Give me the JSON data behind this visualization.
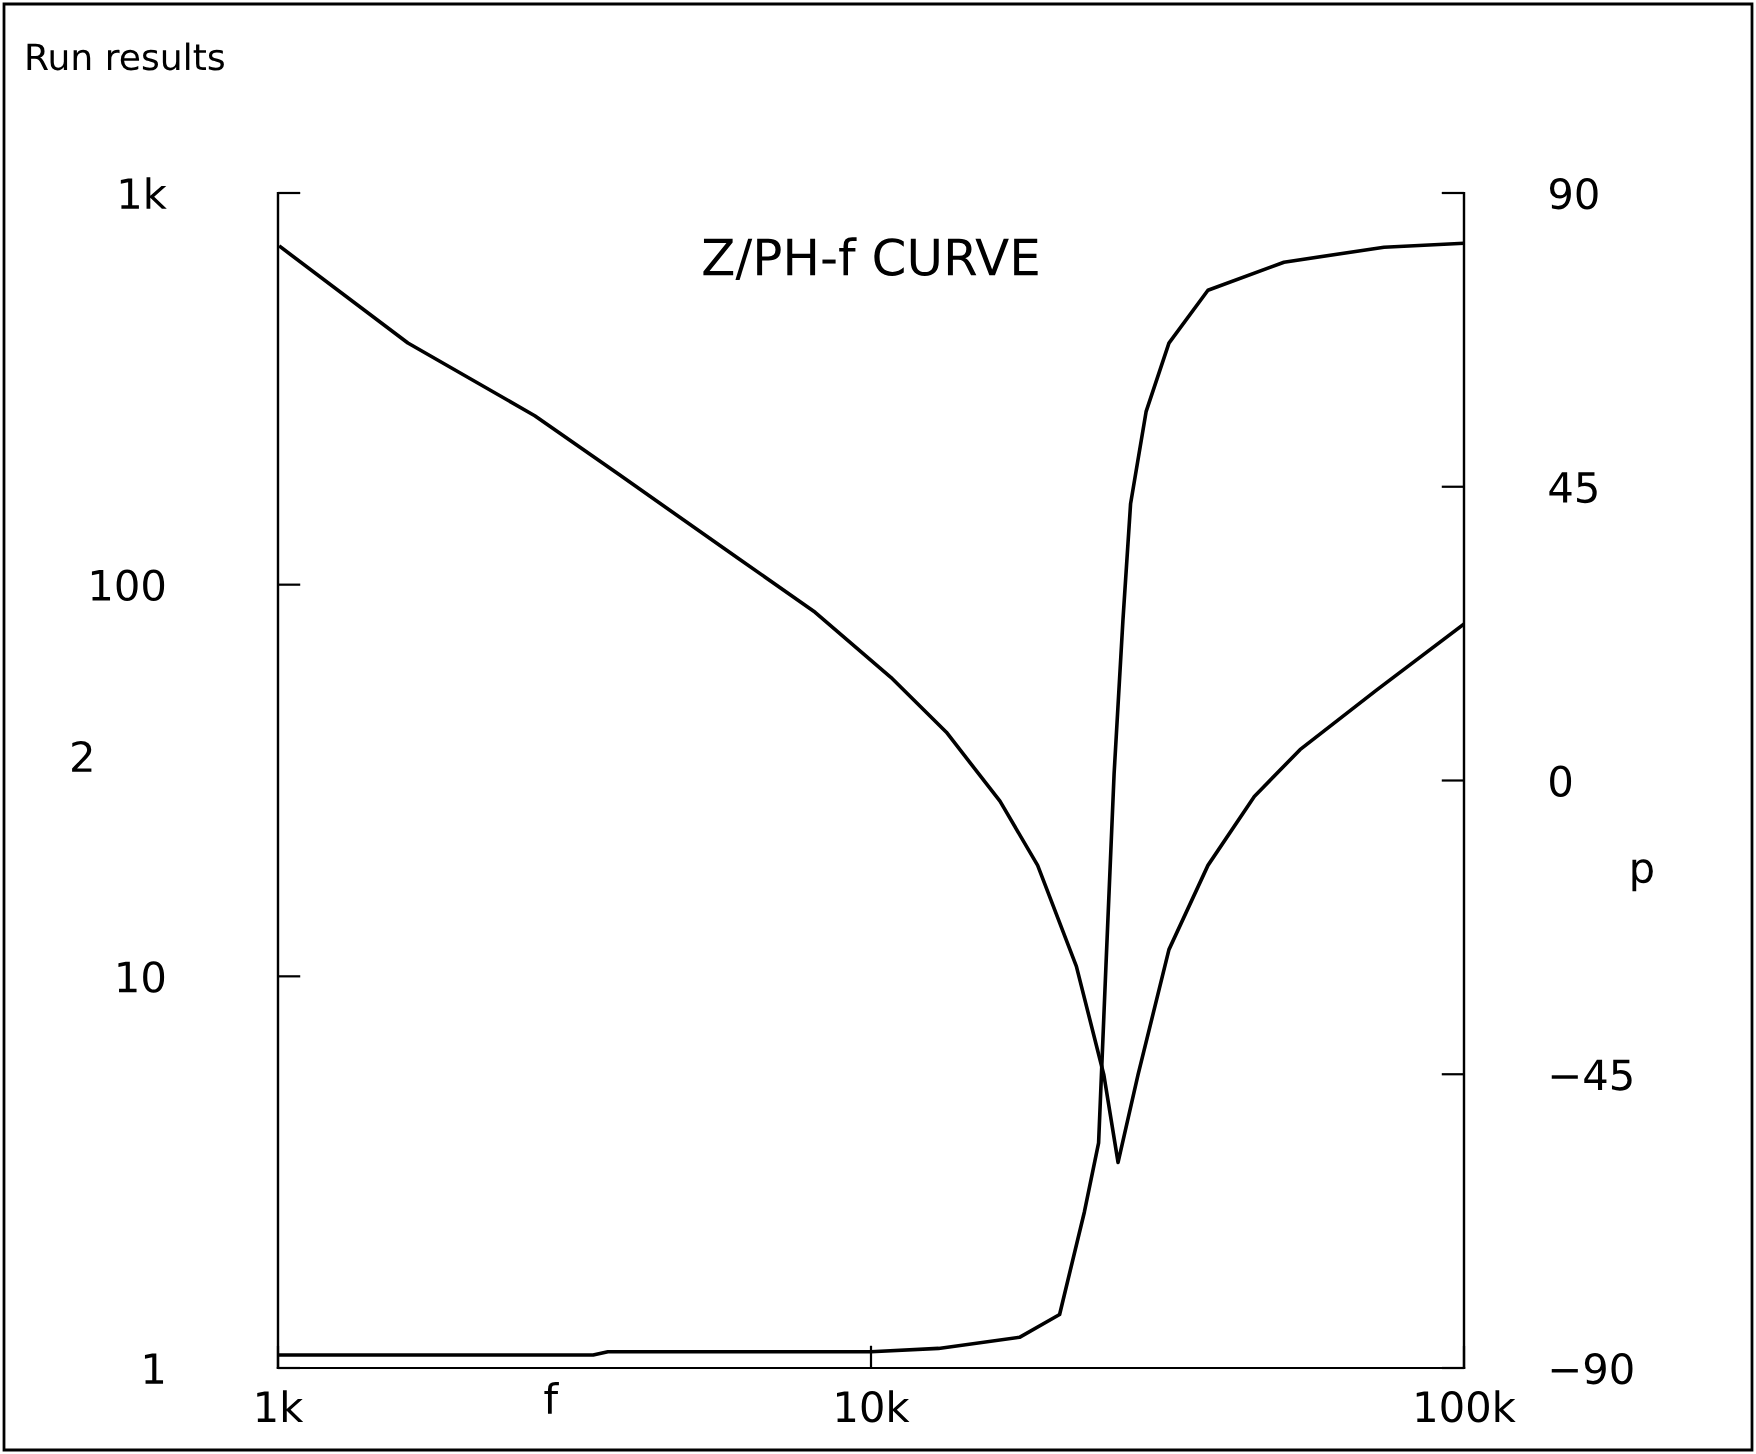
{
  "chart_data": {
    "type": "line",
    "title": "Z/PH-f CURVE",
    "xlabel": "f",
    "ylabel": "2",
    "y2label": "p",
    "annotations": [
      "Run results"
    ],
    "log": "xy",
    "grid": false,
    "marker": "none",
    "line_style": "solid",
    "xlim": [
      1000,
      100000
    ],
    "xticks": [
      {
        "value": 1000,
        "label": "1k"
      },
      {
        "value": 10000,
        "label": "10k"
      },
      {
        "value": 100000,
        "label": "100k"
      }
    ],
    "ylim": [
      1,
      1000
    ],
    "yticks": [
      1,
      10,
      100,
      {
        "value": 1000,
        "label": "1k"
      }
    ],
    "y2lim": [
      -90,
      90
    ],
    "y2ticks": [
      {
        "value": -90,
        "label": "−90"
      },
      {
        "value": -45,
        "label": "−45"
      },
      0,
      45,
      90
    ],
    "series": [
      {
        "color": "#000000",
        "x": [
          1010,
          1656,
          2710,
          3760,
          5960,
          8050,
          10800,
          13400,
          16500,
          19100,
          22200,
          24700,
          26100,
          28200,
          31800,
          37000,
          44300,
          52900,
          71200,
          100000
        ],
        "values": [
          728,
          414,
          270,
          191,
          117,
          85,
          58,
          42,
          28,
          19.2,
          10.6,
          5.6,
          3.35,
          5.6,
          11.7,
          19.2,
          28.8,
          37.9,
          53.8,
          79.4
        ]
      },
      {
        "color": "#000000",
        "axis": "y2",
        "x": [
          1000,
          3400,
          3600,
          10000,
          13000,
          17800,
          20800,
          22900,
          24200,
          24900,
          25700,
          26600,
          27400,
          29100,
          31800,
          37000,
          49700,
          73300,
          100000
        ],
        "values": [
          -88,
          -88,
          -87.5,
          -87.5,
          -87,
          -85.3,
          -81.8,
          -66.1,
          -55.5,
          -28.4,
          1,
          24.6,
          42.4,
          56.5,
          67,
          75.1,
          79.4,
          81.7,
          82.3
        ]
      }
    ]
  }
}
